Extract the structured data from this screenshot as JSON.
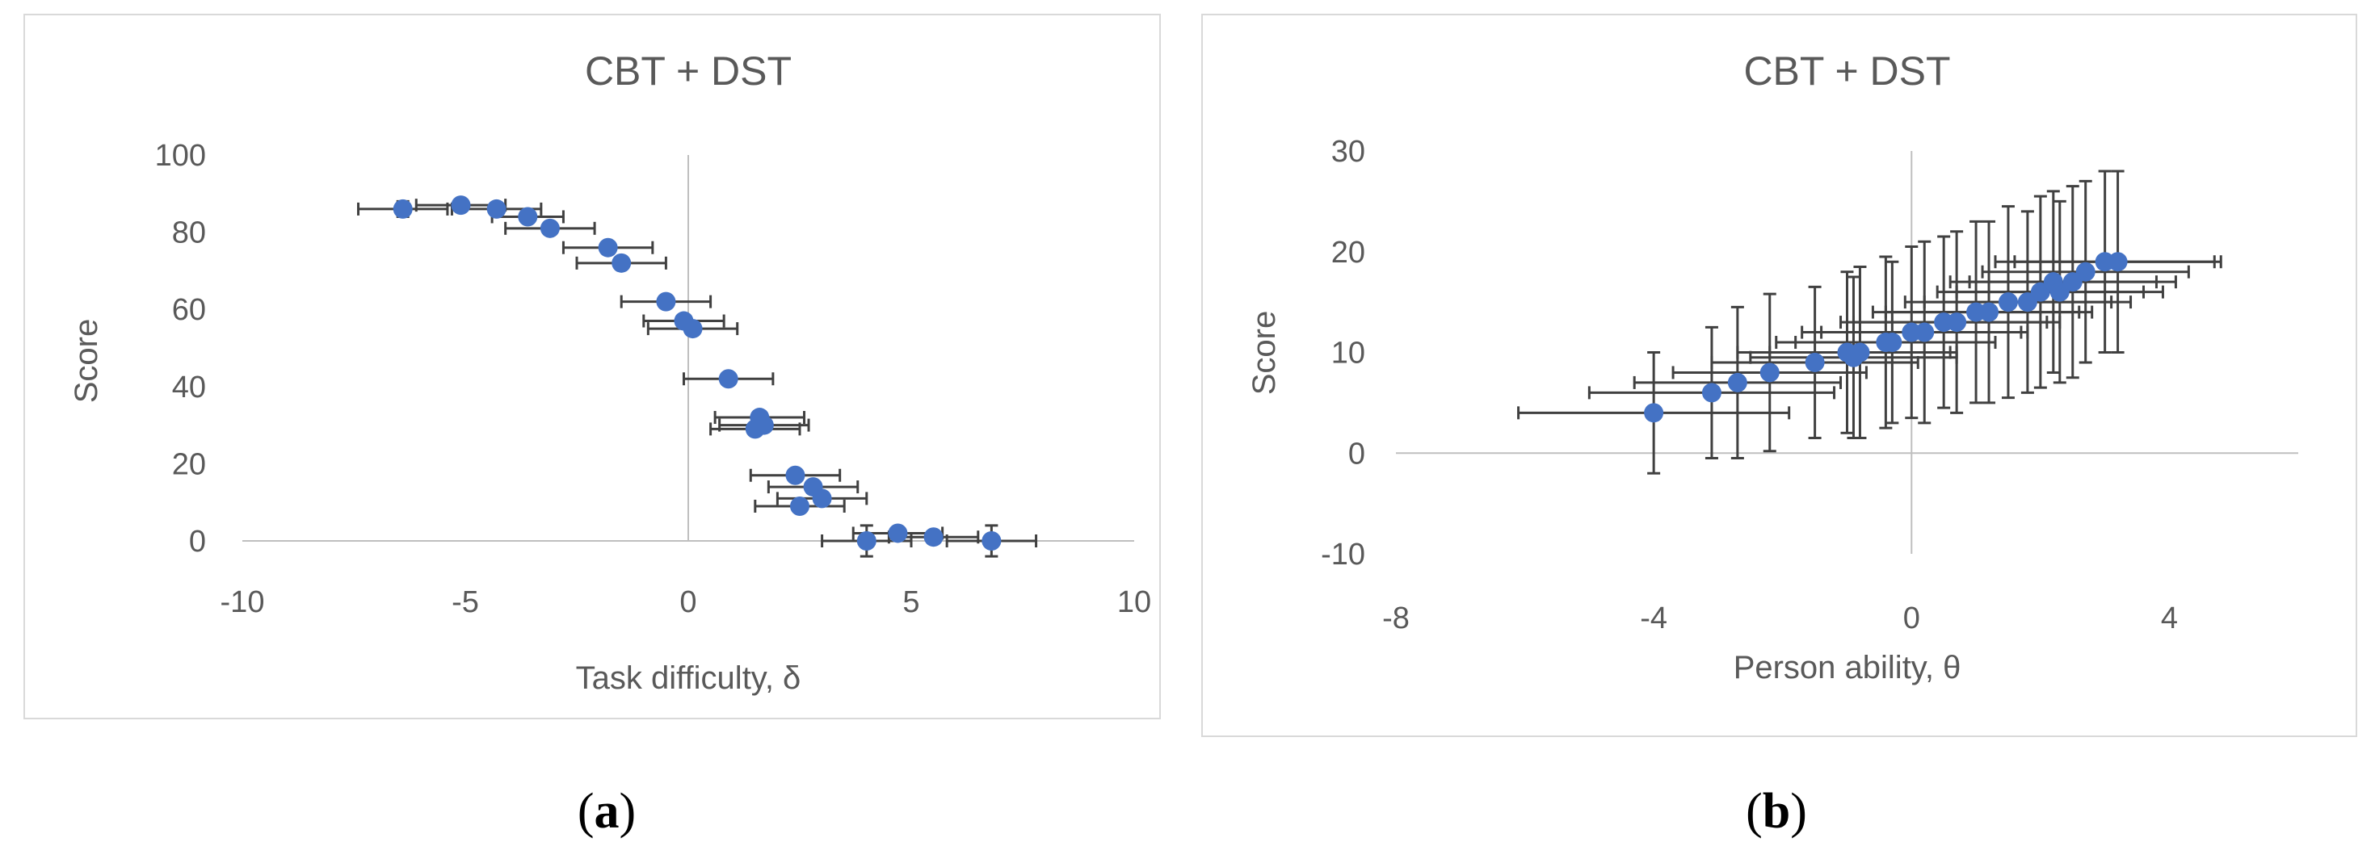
{
  "chart_data": [
    {
      "type": "scatter",
      "panel_label": {
        "open": "(",
        "letter": "a",
        "close": ")"
      },
      "title": "CBT + DST",
      "xlabel": "Task difficulty, δ",
      "ylabel": "Score",
      "xlim": [
        -10,
        10
      ],
      "ylim": [
        0,
        100
      ],
      "xticks": [
        "-10",
        "-5",
        "0",
        "5",
        "10"
      ],
      "yticks": [
        "0",
        "20",
        "40",
        "60",
        "80",
        "100"
      ],
      "grid": false,
      "marker_color": "#4472C4",
      "errorbar_color": "#404040",
      "series": [
        {
          "points": [
            {
              "x": -6.4,
              "y": 86,
              "xerr": 1.0,
              "yerr": 2
            },
            {
              "x": -5.1,
              "y": 87,
              "xerr": 1.0,
              "yerr": 1
            },
            {
              "x": -4.3,
              "y": 86,
              "xerr": 1.0,
              "yerr": 1
            },
            {
              "x": -3.6,
              "y": 84,
              "xerr": 0.8,
              "yerr": 1
            },
            {
              "x": -3.1,
              "y": 81,
              "xerr": 1.0,
              "yerr": 1
            },
            {
              "x": -1.8,
              "y": 76,
              "xerr": 1.0,
              "yerr": 1
            },
            {
              "x": -1.5,
              "y": 72,
              "xerr": 1.0,
              "yerr": 1
            },
            {
              "x": -0.5,
              "y": 62,
              "xerr": 1.0,
              "yerr": 1
            },
            {
              "x": -0.1,
              "y": 57,
              "xerr": 0.9,
              "yerr": 1
            },
            {
              "x": 0.1,
              "y": 55,
              "xerr": 1.0,
              "yerr": 1
            },
            {
              "x": 0.9,
              "y": 42,
              "xerr": 1.0,
              "yerr": 1
            },
            {
              "x": 1.6,
              "y": 32,
              "xerr": 1.0,
              "yerr": 1
            },
            {
              "x": 1.7,
              "y": 30,
              "xerr": 1.0,
              "yerr": 1
            },
            {
              "x": 1.5,
              "y": 29,
              "xerr": 1.0,
              "yerr": 1
            },
            {
              "x": 2.4,
              "y": 17,
              "xerr": 1.0,
              "yerr": 1
            },
            {
              "x": 2.8,
              "y": 14,
              "xerr": 1.0,
              "yerr": 1
            },
            {
              "x": 3.0,
              "y": 11,
              "xerr": 1.0,
              "yerr": 1
            },
            {
              "x": 2.5,
              "y": 9,
              "xerr": 1.0,
              "yerr": 1
            },
            {
              "x": 4.7,
              "y": 2,
              "xerr": 1.0,
              "yerr": 1
            },
            {
              "x": 5.5,
              "y": 1,
              "xerr": 1.0,
              "yerr": 1
            },
            {
              "x": 4.0,
              "y": 0,
              "xerr": 1.0,
              "yerr": 4
            },
            {
              "x": 6.8,
              "y": 0,
              "xerr": 1.0,
              "yerr": 4
            }
          ]
        }
      ]
    },
    {
      "type": "scatter",
      "panel_label": {
        "open": "(",
        "letter": "b",
        "close": ")"
      },
      "title": "CBT + DST",
      "xlabel": "Person ability, θ",
      "ylabel": "Score",
      "xlim": [
        -8,
        6
      ],
      "ylim": [
        -10,
        30
      ],
      "xticks": [
        "-8",
        "-4",
        "0",
        "4"
      ],
      "xtick_values": [
        -8,
        -4,
        0,
        4
      ],
      "yticks": [
        "-10",
        "0",
        "10",
        "20",
        "30"
      ],
      "grid": false,
      "marker_color": "#4472C4",
      "errorbar_color": "#404040",
      "series": [
        {
          "points": [
            {
              "x": -4.0,
              "y": 4,
              "xerr": 2.1,
              "yerr": 6
            },
            {
              "x": -3.1,
              "y": 6,
              "xerr": 1.9,
              "yerr": 6.5
            },
            {
              "x": -2.7,
              "y": 7,
              "xerr": 1.6,
              "yerr": 7.5
            },
            {
              "x": -2.2,
              "y": 8,
              "xerr": 1.5,
              "yerr": 7.8
            },
            {
              "x": -1.5,
              "y": 9,
              "xerr": 1.6,
              "yerr": 7.5
            },
            {
              "x": -1.0,
              "y": 10,
              "xerr": 1.7,
              "yerr": 8
            },
            {
              "x": -0.9,
              "y": 9.5,
              "xerr": 1.6,
              "yerr": 8
            },
            {
              "x": -0.8,
              "y": 10,
              "xerr": 1.4,
              "yerr": 8.5
            },
            {
              "x": -0.4,
              "y": 11,
              "xerr": 1.7,
              "yerr": 8.5
            },
            {
              "x": -0.3,
              "y": 11,
              "xerr": 1.5,
              "yerr": 8
            },
            {
              "x": 0.0,
              "y": 12,
              "xerr": 1.7,
              "yerr": 8.5
            },
            {
              "x": 0.2,
              "y": 12,
              "xerr": 1.6,
              "yerr": 9
            },
            {
              "x": 0.5,
              "y": 13,
              "xerr": 1.6,
              "yerr": 8.5
            },
            {
              "x": 0.7,
              "y": 13,
              "xerr": 1.6,
              "yerr": 9
            },
            {
              "x": 1.0,
              "y": 14,
              "xerr": 1.6,
              "yerr": 9
            },
            {
              "x": 1.2,
              "y": 14,
              "xerr": 1.6,
              "yerr": 9
            },
            {
              "x": 1.5,
              "y": 15,
              "xerr": 1.6,
              "yerr": 9.5
            },
            {
              "x": 1.8,
              "y": 15,
              "xerr": 1.6,
              "yerr": 9
            },
            {
              "x": 2.0,
              "y": 16,
              "xerr": 1.6,
              "yerr": 9.5
            },
            {
              "x": 2.2,
              "y": 17,
              "xerr": 1.6,
              "yerr": 9
            },
            {
              "x": 2.3,
              "y": 16,
              "xerr": 1.6,
              "yerr": 9
            },
            {
              "x": 2.5,
              "y": 17,
              "xerr": 1.6,
              "yerr": 9.5
            },
            {
              "x": 2.7,
              "y": 18,
              "xerr": 1.6,
              "yerr": 9
            },
            {
              "x": 3.0,
              "y": 19,
              "xerr": 1.7,
              "yerr": 9
            },
            {
              "x": 3.2,
              "y": 19,
              "xerr": 1.6,
              "yerr": 9
            }
          ]
        }
      ]
    }
  ]
}
